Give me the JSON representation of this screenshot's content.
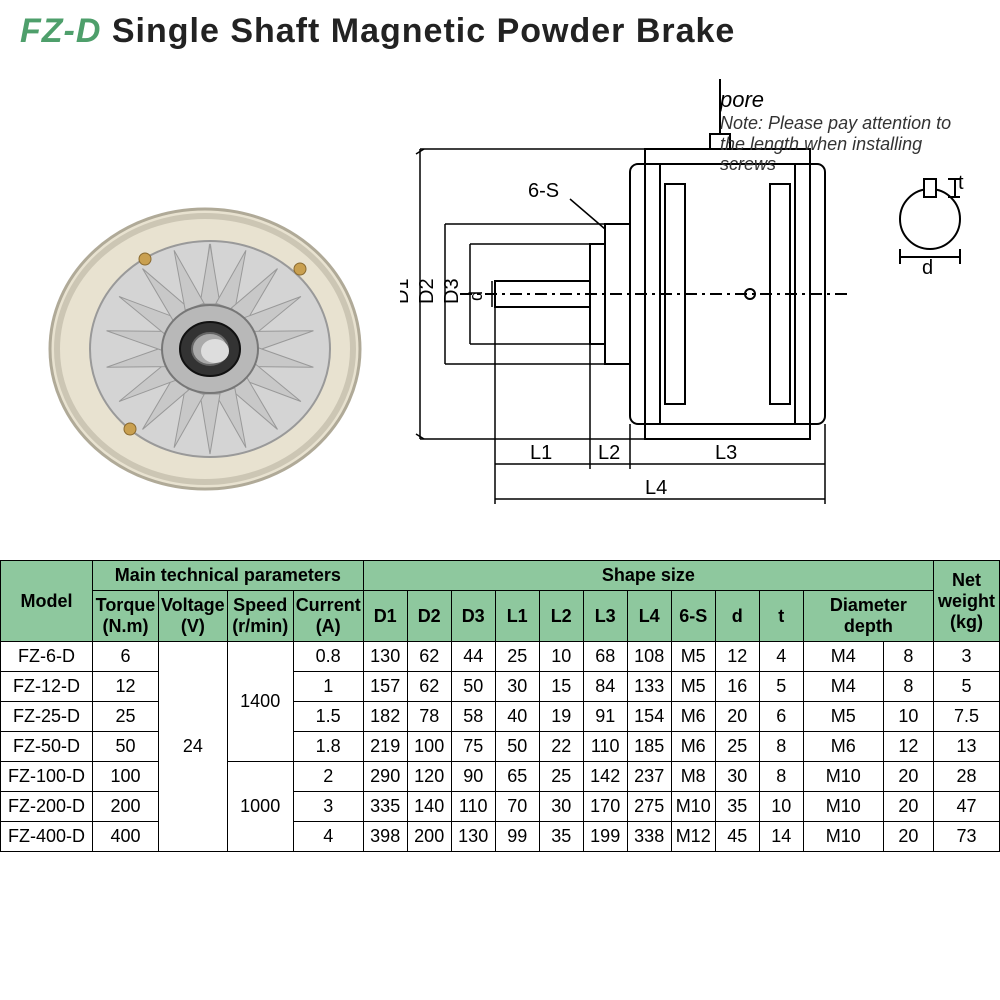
{
  "title": {
    "prefix": "FZ-D",
    "rest": " Single Shaft Magnetic Powder Brake",
    "prefix_color": "#4e9f6b"
  },
  "annotations": {
    "pore": "pore",
    "note": "Note: Please pay attention to the length when installing screws",
    "d_t_label_t": "t",
    "d_t_label_d": "d",
    "six_s": "6-S",
    "D1": "D1",
    "D2": "D2",
    "D3": "D3",
    "d": "d",
    "L1": "L1",
    "L2": "L2",
    "L3": "L3",
    "L4": "L4"
  },
  "colors": {
    "header_bg": "#8ec89e",
    "border": "#000000",
    "diagram_line": "#000000",
    "photo_body": "#e8e2d0",
    "photo_fins": "#c8c8c8",
    "photo_shadow": "#b5b0a0"
  },
  "table": {
    "headers": {
      "model": "Model",
      "tech_group": "Main technical parameters",
      "torque": "Torque (N.m)",
      "voltage": "Voltage (V)",
      "speed": "Speed (r/min)",
      "current": "Current (A)",
      "shape_group": "Shape size",
      "D1": "D1",
      "D2": "D2",
      "D3": "D3",
      "L1": "L1",
      "L2": "L2",
      "L3": "L3",
      "L4": "L4",
      "6S": "6-S",
      "d": "d",
      "t": "t",
      "diam_depth": "Diameter depth",
      "net_weight": "Net weight (kg)"
    },
    "voltage_span": "24",
    "speed_spans": [
      "1400",
      "1000"
    ],
    "rows": [
      {
        "model": "FZ-6-D",
        "torque": "6",
        "current": "0.8",
        "D1": "130",
        "D2": "62",
        "D3": "44",
        "L1": "25",
        "L2": "10",
        "L3": "68",
        "L4": "108",
        "sixS": "M5",
        "d": "12",
        "t": "4",
        "dd1": "M4",
        "dd2": "8",
        "net": "3"
      },
      {
        "model": "FZ-12-D",
        "torque": "12",
        "current": "1",
        "D1": "157",
        "D2": "62",
        "D3": "50",
        "L1": "30",
        "L2": "15",
        "L3": "84",
        "L4": "133",
        "sixS": "M5",
        "d": "16",
        "t": "5",
        "dd1": "M4",
        "dd2": "8",
        "net": "5"
      },
      {
        "model": "FZ-25-D",
        "torque": "25",
        "current": "1.5",
        "D1": "182",
        "D2": "78",
        "D3": "58",
        "L1": "40",
        "L2": "19",
        "L3": "91",
        "L4": "154",
        "sixS": "M6",
        "d": "20",
        "t": "6",
        "dd1": "M5",
        "dd2": "10",
        "net": "7.5"
      },
      {
        "model": "FZ-50-D",
        "torque": "50",
        "current": "1.8",
        "D1": "219",
        "D2": "100",
        "D3": "75",
        "L1": "50",
        "L2": "22",
        "L3": "110",
        "L4": "185",
        "sixS": "M6",
        "d": "25",
        "t": "8",
        "dd1": "M6",
        "dd2": "12",
        "net": "13"
      },
      {
        "model": "FZ-100-D",
        "torque": "100",
        "current": "2",
        "D1": "290",
        "D2": "120",
        "D3": "90",
        "L1": "65",
        "L2": "25",
        "L3": "142",
        "L4": "237",
        "sixS": "M8",
        "d": "30",
        "t": "8",
        "dd1": "M10",
        "dd2": "20",
        "net": "28"
      },
      {
        "model": "FZ-200-D",
        "torque": "200",
        "current": "3",
        "D1": "335",
        "D2": "140",
        "D3": "110",
        "L1": "70",
        "L2": "30",
        "L3": "170",
        "L4": "275",
        "sixS": "M10",
        "d": "35",
        "t": "10",
        "dd1": "M10",
        "dd2": "20",
        "net": "47"
      },
      {
        "model": "FZ-400-D",
        "torque": "400",
        "current": "4",
        "D1": "398",
        "D2": "200",
        "D3": "130",
        "L1": "99",
        "L2": "35",
        "L3": "199",
        "L4": "338",
        "sixS": "M12",
        "d": "45",
        "t": "14",
        "dd1": "M10",
        "dd2": "20",
        "net": "73"
      }
    ]
  }
}
